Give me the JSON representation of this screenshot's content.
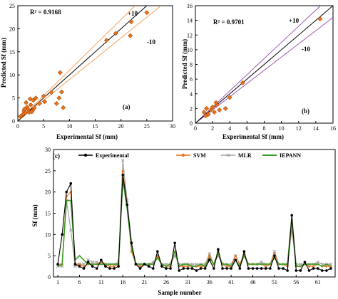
{
  "chart_data": [
    {
      "type": "scatter",
      "panel_label": "(a)",
      "r2_label": "R² = 0.9168",
      "xlabel": "Experimental Sf (mm)",
      "ylabel": "Predicted Sf (mm)",
      "xlim": [
        0,
        30
      ],
      "ylim": [
        0,
        25
      ],
      "xticks": [
        0,
        5,
        10,
        15,
        20,
        25,
        30
      ],
      "yticks": [
        0,
        5,
        10,
        15,
        20,
        25
      ],
      "line_labels": {
        "plus": "+10",
        "minus": "-10"
      },
      "colors": {
        "points": "#e8701a",
        "fit": "#000000",
        "bounds": "#f4a261"
      },
      "points": [
        [
          1.0,
          1.5
        ],
        [
          1.2,
          2.2
        ],
        [
          1.5,
          1.8
        ],
        [
          1.8,
          3.0
        ],
        [
          2.0,
          2.5
        ],
        [
          2.2,
          1.9
        ],
        [
          2.5,
          3.5
        ],
        [
          2.8,
          2.2
        ],
        [
          3.0,
          4.5
        ],
        [
          3.2,
          2.8
        ],
        [
          3.5,
          5.0
        ],
        [
          1.6,
          4.0
        ],
        [
          2.4,
          4.8
        ],
        [
          4.2,
          3.8
        ],
        [
          5.0,
          5.4
        ],
        [
          5.2,
          4.2
        ],
        [
          6.5,
          6.2
        ],
        [
          7.5,
          3.8
        ],
        [
          8.0,
          5.0
        ],
        [
          8.2,
          10.5
        ],
        [
          8.8,
          2.9
        ],
        [
          8.5,
          6.3
        ],
        [
          17.2,
          17.5
        ],
        [
          19.0,
          19.0
        ],
        [
          21.8,
          18.5
        ],
        [
          22.0,
          21.5
        ],
        [
          25.0,
          23.5
        ],
        [
          0.5,
          1.0
        ],
        [
          1.3,
          2.6
        ],
        [
          2.7,
          2.0
        ]
      ]
    },
    {
      "type": "scatter",
      "panel_label": "(b)",
      "r2_label": "R² = 0.9701",
      "xlabel": "Experimental Sf (mm)",
      "ylabel": "Predicted Sf (mm)",
      "xlim": [
        0,
        16
      ],
      "ylim": [
        0,
        16
      ],
      "xticks": [
        0,
        2,
        4,
        6,
        8,
        10,
        12,
        14,
        16
      ],
      "yticks": [
        0,
        2,
        4,
        6,
        8,
        10,
        12,
        14,
        16
      ],
      "line_labels": {
        "plus": "+10",
        "minus": "-10"
      },
      "colors": {
        "points": "#e8701a",
        "fit": "#000000",
        "bounds": "#9b59b6"
      },
      "points": [
        [
          1.0,
          1.5
        ],
        [
          1.3,
          2.0
        ],
        [
          1.5,
          1.2
        ],
        [
          1.8,
          1.8
        ],
        [
          2.0,
          2.2
        ],
        [
          2.2,
          1.5
        ],
        [
          2.5,
          2.5
        ],
        [
          2.8,
          1.8
        ],
        [
          3.5,
          2.0
        ],
        [
          4.0,
          3.5
        ],
        [
          5.5,
          5.5
        ],
        [
          14.5,
          14.2
        ],
        [
          1.2,
          1.0
        ],
        [
          2.4,
          2.8
        ]
      ]
    },
    {
      "type": "line",
      "panel_label": "(c)",
      "xlabel": "Sample number",
      "ylabel": "Sf (mm)",
      "xlim": [
        0,
        65
      ],
      "ylim": [
        0,
        30
      ],
      "xticks": [
        1,
        6,
        11,
        16,
        21,
        26,
        31,
        36,
        41,
        46,
        51,
        56,
        61
      ],
      "yticks": [
        0,
        5,
        10,
        15,
        20,
        25,
        30
      ],
      "x": [
        1,
        2,
        3,
        4,
        5,
        6,
        7,
        8,
        9,
        10,
        11,
        12,
        13,
        14,
        15,
        16,
        17,
        18,
        19,
        20,
        21,
        22,
        23,
        24,
        25,
        26,
        27,
        28,
        29,
        30,
        31,
        32,
        33,
        34,
        35,
        36,
        37,
        38,
        39,
        40,
        41,
        42,
        43,
        44,
        45,
        46,
        47,
        48,
        49,
        50,
        51,
        52,
        53,
        54,
        55,
        56,
        57,
        58,
        59,
        60,
        61,
        62,
        63,
        64
      ],
      "series": [
        {
          "name": "Experimental",
          "color": "#000000",
          "marker": "circle",
          "values": [
            3,
            10,
            20,
            22,
            3,
            2.5,
            2,
            3.5,
            2.5,
            2,
            4,
            2.5,
            2,
            2,
            2.5,
            24,
            17,
            8,
            3,
            2,
            3,
            2.5,
            2,
            6,
            2.5,
            2,
            2,
            8,
            1.5,
            2,
            2,
            2,
            1.5,
            2,
            2,
            4,
            2,
            6.5,
            2,
            2,
            2,
            4,
            2,
            6,
            2,
            2,
            2,
            2,
            2,
            2,
            5,
            2,
            2,
            1.5,
            14.5,
            1.5,
            1.5,
            3.5,
            1.5,
            2,
            2,
            1.5,
            1.5,
            2
          ]
        },
        {
          "name": "SVM",
          "color": "#e8701a",
          "marker": "circle",
          "values": [
            3,
            3,
            19,
            20,
            3,
            3,
            2.5,
            3,
            3,
            3,
            3.5,
            3,
            2.5,
            2.5,
            3,
            25,
            17,
            6,
            3,
            2.5,
            3,
            3,
            3,
            5,
            3,
            2.5,
            2.5,
            6,
            2.5,
            2.5,
            2.5,
            2.5,
            2.5,
            2.5,
            2.5,
            5,
            3,
            6,
            3,
            2.5,
            2.5,
            5,
            3,
            5.5,
            3,
            3,
            3,
            3,
            2.5,
            3,
            5.5,
            3,
            3,
            2.5,
            13,
            2.5,
            2.5,
            3,
            2.5,
            2.5,
            3,
            2.5,
            2.5,
            2.5
          ]
        },
        {
          "name": "MLR",
          "color": "#a0a0a0",
          "marker": "x",
          "values": [
            2.5,
            2.5,
            18,
            11,
            2.5,
            3,
            3,
            4,
            3.5,
            3.5,
            3,
            3,
            3,
            3,
            3.5,
            27.5,
            18,
            8,
            3,
            3,
            3,
            3,
            3.5,
            4.5,
            3,
            3,
            3,
            5,
            3,
            3,
            3,
            3,
            3,
            3,
            3,
            5.5,
            3,
            5,
            3,
            3,
            3,
            5,
            3,
            5,
            3,
            3,
            3,
            3.5,
            3,
            3,
            6,
            3,
            3,
            3,
            11,
            3,
            3,
            3,
            3,
            3,
            3.5,
            3,
            3,
            3
          ]
        },
        {
          "name": "IEPANN",
          "color": "#3a9d23",
          "marker": "none",
          "values": [
            2.5,
            3,
            18,
            18,
            4,
            5,
            4,
            3,
            3,
            3,
            3,
            3,
            3,
            3,
            3,
            23,
            16,
            7,
            3,
            3,
            3,
            3,
            3,
            4.5,
            3,
            2.5,
            3,
            6,
            2.5,
            3,
            3,
            2.5,
            2.5,
            3,
            2.5,
            4.5,
            3,
            5.5,
            3,
            3,
            2.5,
            4,
            2.5,
            5,
            3,
            3,
            3,
            3,
            3,
            3,
            4.5,
            3,
            3,
            3,
            14,
            2.5,
            2.5,
            3,
            3,
            3,
            3,
            2.5,
            3,
            2.5
          ]
        }
      ]
    }
  ]
}
